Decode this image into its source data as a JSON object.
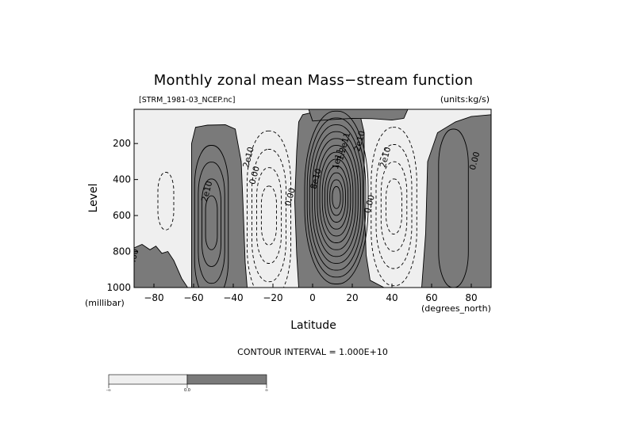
{
  "chart_data": {
    "type": "contour",
    "title": "Monthly zonal mean Mass−stream function",
    "file_label": "[STRM_1981-03_NCEP.nc]",
    "units_label": "(units:kg/s)",
    "xlabel": "Latitude",
    "x_unit": "(degrees_north)",
    "ylabel": "Level",
    "y_unit": "(millibar)",
    "xlim": [
      -90,
      90
    ],
    "ylim": [
      1000,
      10
    ],
    "y_inverted": true,
    "x_ticks": [
      {
        "value": -80,
        "label": "−80"
      },
      {
        "value": -60,
        "label": "−60"
      },
      {
        "value": -40,
        "label": "−40"
      },
      {
        "value": -20,
        "label": "−20"
      },
      {
        "value": 0,
        "label": "0"
      },
      {
        "value": 20,
        "label": "20"
      },
      {
        "value": 40,
        "label": "40"
      },
      {
        "value": 60,
        "label": "60"
      },
      {
        "value": 80,
        "label": "80"
      }
    ],
    "y_ticks": [
      {
        "value": 200,
        "label": "200"
      },
      {
        "value": 400,
        "label": "400"
      },
      {
        "value": 600,
        "label": "600"
      },
      {
        "value": 800,
        "label": "800"
      },
      {
        "value": 1000,
        "label": "1000"
      }
    ],
    "contour_interval_text": "CONTOUR INTERVAL = 1.000E+10",
    "contour_interval": 10000000000.0,
    "colors": {
      "positive_fill": "#7a7a7a",
      "negative_fill": "#efefef",
      "line": "#000000"
    },
    "colorbar": {
      "labels": [
        "-∞",
        "0.0",
        "∞"
      ],
      "colors": [
        "#efefef",
        "#7a7a7a"
      ]
    },
    "cells": [
      {
        "name": "southern-polar-cell",
        "sign": "positive",
        "center": [
          -85,
          900
        ],
        "peak": 10000000000.0
      },
      {
        "name": "southern-ferrel-cell",
        "sign": "negative",
        "center": [
          -73,
          500
        ],
        "peak": -10000000000.0
      },
      {
        "name": "southern-positive-cell",
        "sign": "positive",
        "center": [
          -51,
          650
        ],
        "peak": 40000000000.0
      },
      {
        "name": "southern-hadley-cell",
        "sign": "negative",
        "center": [
          -22,
          600
        ],
        "peak": -40000000000.0
      },
      {
        "name": "northern-hadley-cell",
        "sign": "positive",
        "center": [
          12,
          500
        ],
        "peak": 130000000000.0
      },
      {
        "name": "northern-ferrel-cell",
        "sign": "negative",
        "center": [
          41,
          550
        ],
        "peak": -40000000000.0
      },
      {
        "name": "northern-polar-cell",
        "sign": "positive",
        "center": [
          71,
          550
        ],
        "peak": 20000000000.0
      }
    ],
    "contour_labels": [
      {
        "text": "0.00",
        "lat": -28,
        "lev": 380
      },
      {
        "text": "2e10",
        "lat": -52,
        "lev": 470
      },
      {
        "text": "2e10",
        "lat": -31,
        "lev": 280
      },
      {
        "text": "0.00",
        "lat": -10,
        "lev": 500
      },
      {
        "text": "8e10",
        "lat": 3,
        "lev": 400
      },
      {
        "text": "1e11",
        "lat": 14,
        "lev": 290
      },
      {
        "text": "1.2e11",
        "lat": 17,
        "lev": 220
      },
      {
        "text": "2e10",
        "lat": 25,
        "lev": 190
      },
      {
        "text": "0.00",
        "lat": 30,
        "lev": 540
      },
      {
        "text": "2e10",
        "lat": 38,
        "lev": 280
      },
      {
        "text": "0.00",
        "lat": 83,
        "lev": 300
      },
      {
        "text": "0.00",
        "lat": -89,
        "lev": 840
      }
    ]
  }
}
